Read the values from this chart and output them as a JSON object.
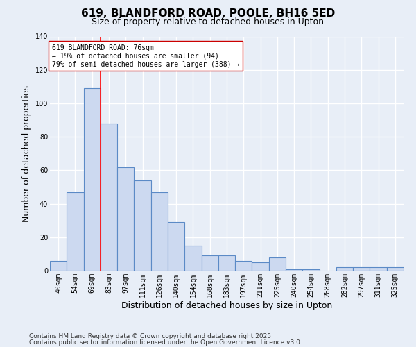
{
  "title": "619, BLANDFORD ROAD, POOLE, BH16 5ED",
  "subtitle": "Size of property relative to detached houses in Upton",
  "xlabel": "Distribution of detached houses by size in Upton",
  "ylabel": "Number of detached properties",
  "categories": [
    "40sqm",
    "54sqm",
    "69sqm",
    "83sqm",
    "97sqm",
    "111sqm",
    "126sqm",
    "140sqm",
    "154sqm",
    "168sqm",
    "183sqm",
    "197sqm",
    "211sqm",
    "225sqm",
    "240sqm",
    "254sqm",
    "268sqm",
    "282sqm",
    "297sqm",
    "311sqm",
    "325sqm"
  ],
  "values": [
    6,
    47,
    109,
    88,
    62,
    54,
    47,
    29,
    15,
    9,
    9,
    6,
    5,
    8,
    1,
    1,
    0,
    2,
    2,
    2,
    2
  ],
  "bar_color": "#ccd9f0",
  "bar_edge_color": "#5b8ac6",
  "annotation_line1": "619 BLANDFORD ROAD: 76sqm",
  "annotation_line2": "← 19% of detached houses are smaller (94)",
  "annotation_line3": "79% of semi-detached houses are larger (388) →",
  "red_line_x": 3.0,
  "ylim": [
    0,
    140
  ],
  "yticks": [
    0,
    20,
    40,
    60,
    80,
    100,
    120,
    140
  ],
  "footer1": "Contains HM Land Registry data © Crown copyright and database right 2025.",
  "footer2": "Contains public sector information licensed under the Open Government Licence v3.0.",
  "bg_color": "#e8eef7",
  "grid_color": "#ffffff",
  "title_fontsize": 11,
  "subtitle_fontsize": 9,
  "xlabel_fontsize": 9,
  "ylabel_fontsize": 9,
  "tick_fontsize": 7,
  "annotation_fontsize": 7,
  "footer_fontsize": 6.5
}
